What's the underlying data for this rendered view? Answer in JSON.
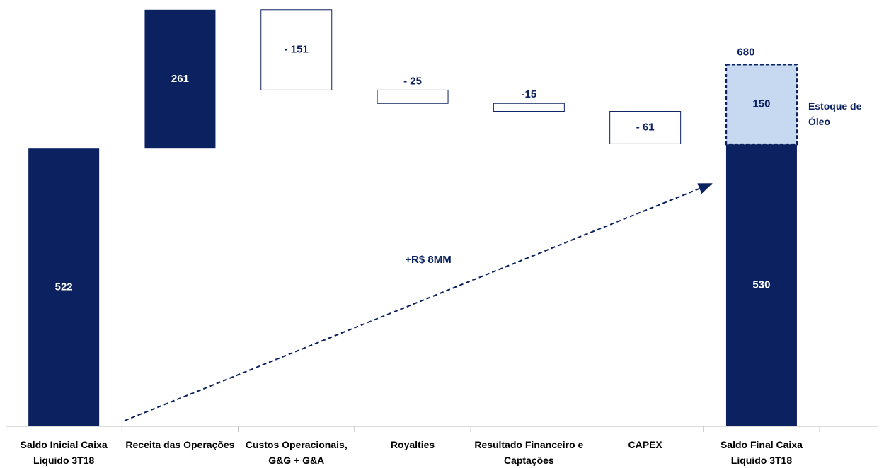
{
  "chart_data": {
    "type": "waterfall",
    "categories": [
      "Saldo Inicial Caixa Líquido 3T18",
      "Receita das Operações",
      "Custos Operacionais, G&G + G&A",
      "Royalties",
      "Resultado Financeiro e Captações",
      "CAPEX",
      "Saldo Final Caixa Líquido 3T18"
    ],
    "values": [
      522,
      261,
      -151,
      -25,
      -15,
      -61,
      530
    ],
    "value_labels": [
      "522",
      "261",
      "- 151",
      "- 25",
      "-15",
      "- 61",
      "530"
    ],
    "measure": [
      "absolute",
      "relative",
      "relative",
      "relative",
      "relative",
      "relative",
      "absolute"
    ],
    "color": "#0c2260",
    "stock": {
      "name": "Estoque de Óleo",
      "value": 150,
      "color": "#c6d9f1",
      "total": 680
    },
    "annotation": "+R$ 8MM",
    "ylim": [
      0,
      800
    ]
  }
}
